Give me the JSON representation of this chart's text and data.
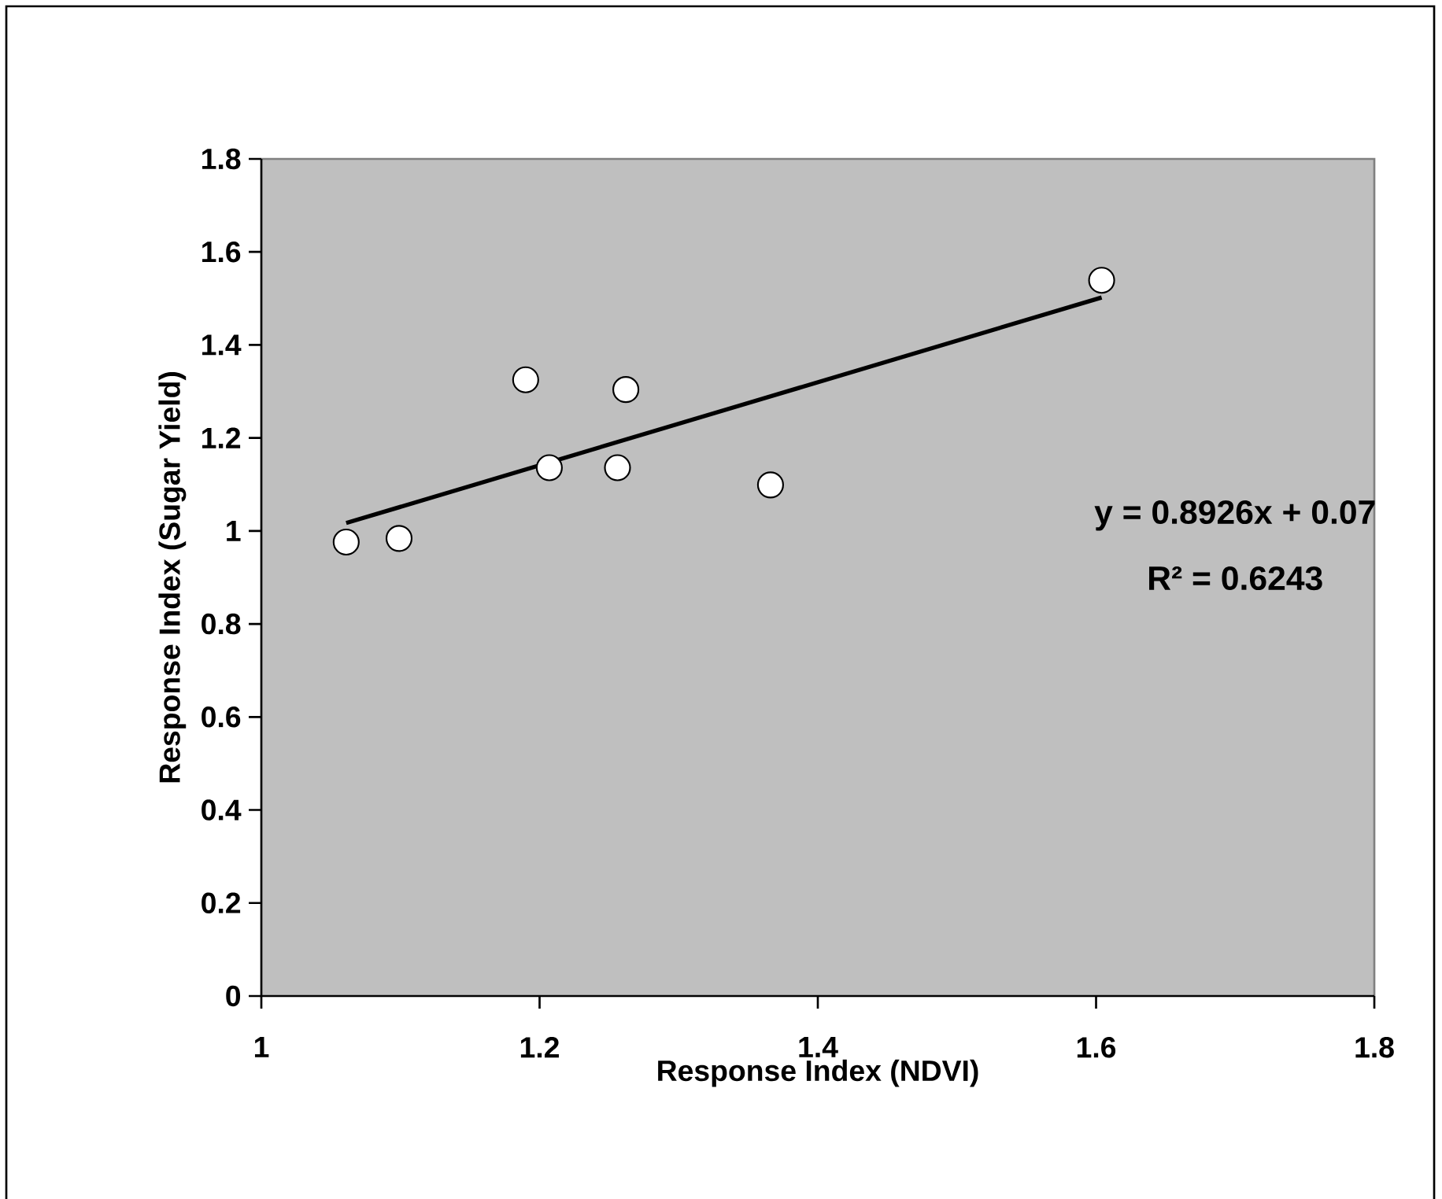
{
  "chart_data": {
    "type": "scatter",
    "xlabel": "Response Index (NDVI)",
    "ylabel": "Response Index (Sugar Yield)",
    "xlim": [
      1,
      1.8
    ],
    "xticks": [
      1,
      1.2,
      1.4,
      1.6,
      1.8
    ],
    "ylim": [
      0,
      1.8
    ],
    "yticks": [
      0,
      0.2,
      0.4,
      0.6,
      0.8,
      1,
      1.2,
      1.4,
      1.6,
      1.8
    ],
    "marker": "circle",
    "series": [
      {
        "color": "#ffffff",
        "x": [
          1.061,
          1.099,
          1.19,
          1.207,
          1.256,
          1.262,
          1.366,
          1.604
        ],
        "values": [
          0.976,
          0.984,
          1.325,
          1.136,
          1.136,
          1.304,
          1.099,
          1.539
        ]
      },
      {
        "type": "line",
        "color": "#000000",
        "marker": "none",
        "x": [
          1.061,
          1.604
        ],
        "values": [
          1.017,
          1.502
        ]
      }
    ],
    "annotations": [
      "y = 0.8926x + 0.07",
      "R² = 0.6243"
    ]
  }
}
